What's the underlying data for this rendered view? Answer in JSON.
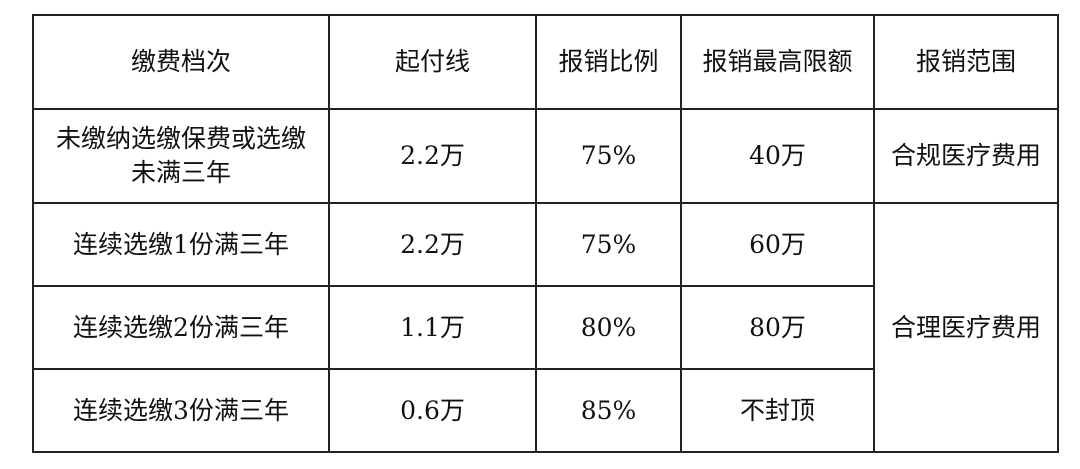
{
  "table": {
    "headers": [
      "缴费档次",
      "起付线",
      "报销比例",
      "报销最高限额",
      "报销范围"
    ],
    "rows": [
      {
        "tier": "未缴纳选缴保费或选缴未满三年",
        "deductible": "2.2万",
        "ratio": "75%",
        "cap": "40万",
        "scope": "合规医疗费用"
      },
      {
        "tier": "连续选缴1份满三年",
        "deductible": "2.2万",
        "ratio": "75%",
        "cap": "60万",
        "scope": "合理医疗费用"
      },
      {
        "tier": "连续选缴2份满三年",
        "deductible": "1.1万",
        "ratio": "80%",
        "cap": "80万"
      },
      {
        "tier": "连续选缴3份满三年",
        "deductible": "0.6万",
        "ratio": "85%",
        "cap": "不封顶"
      }
    ]
  }
}
